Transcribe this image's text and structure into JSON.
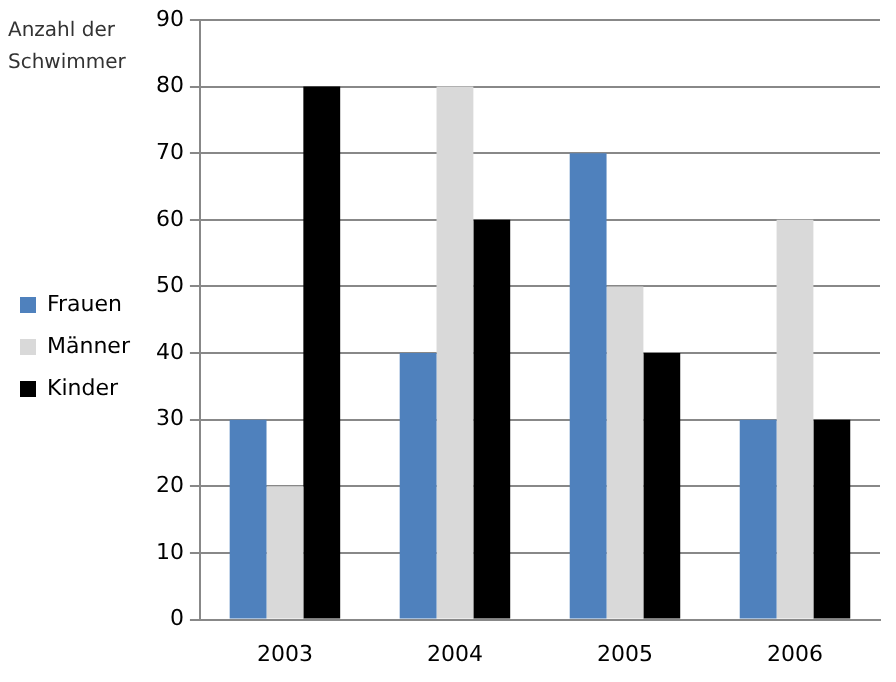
{
  "chart_data": {
    "type": "bar",
    "ylabel": "Anzahl der Schwimmer",
    "categories": [
      "2003",
      "2004",
      "2005",
      "2006"
    ],
    "series": [
      {
        "name": "Frauen",
        "color": "#4f81bd",
        "values": [
          30,
          40,
          70,
          30
        ]
      },
      {
        "name": "Männer",
        "color": "#d9d9d9",
        "values": [
          20,
          80,
          50,
          60
        ]
      },
      {
        "name": "Kinder",
        "color": "#000000",
        "values": [
          80,
          60,
          40,
          30
        ]
      }
    ],
    "ylim": [
      0,
      90
    ],
    "yticks": [
      0,
      10,
      20,
      30,
      40,
      50,
      60,
      70,
      80,
      90
    ],
    "grid": "y",
    "legend": "left"
  }
}
